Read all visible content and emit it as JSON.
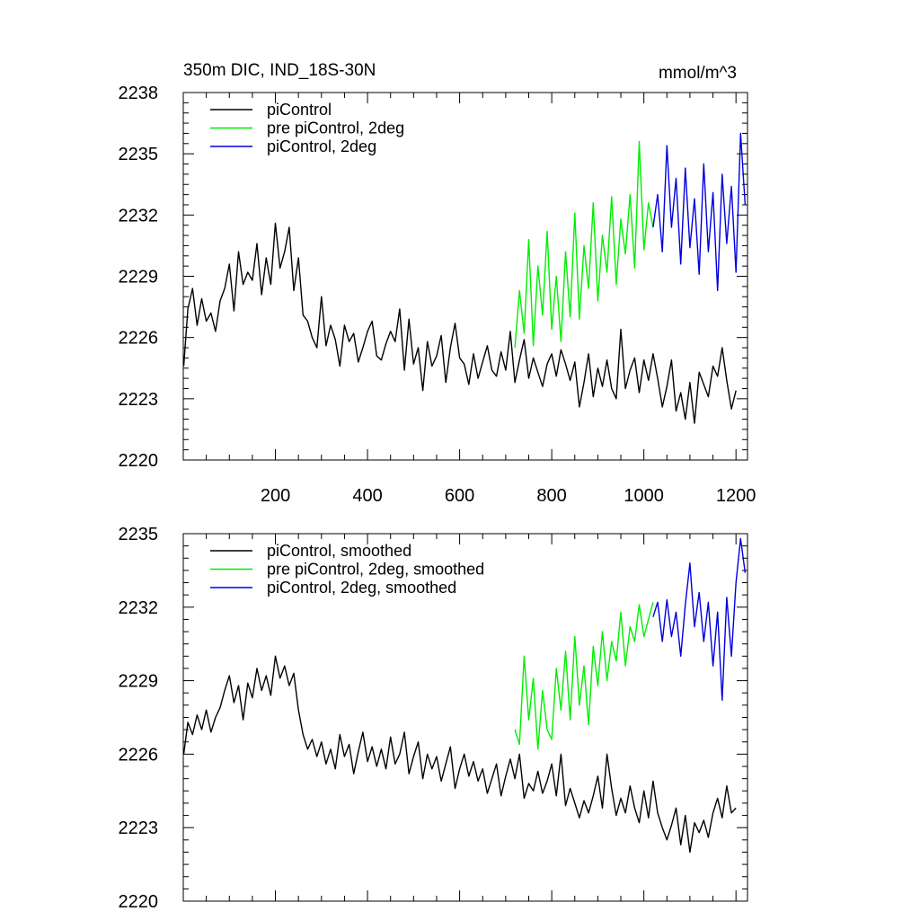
{
  "figure": {
    "title_left": "350m DIC, IND_18S-30N",
    "title_right": "mmol/m^3"
  },
  "colors": {
    "piControl": "#000000",
    "pre_piControl": "#00ee00",
    "piControl_2deg": "#0000dd"
  },
  "chart_data": [
    {
      "type": "line",
      "panel": "top",
      "title": "350m DIC, IND_18S-30N",
      "units": "mmol/m^3",
      "xlim": [
        0,
        1225
      ],
      "ylim": [
        2220,
        2238
      ],
      "x_ticks": [
        200,
        400,
        600,
        800,
        1000,
        1200
      ],
      "x_tick_labels": [
        "200",
        "400",
        "600",
        "800",
        "1000",
        "1200"
      ],
      "y_ticks": [
        2220,
        2223,
        2226,
        2229,
        2232,
        2235,
        2238
      ],
      "y_tick_labels": [
        "2220",
        "2223",
        "2226",
        "2229",
        "2232",
        "2235",
        "2238"
      ],
      "legend": [
        "piControl",
        "pre piControl, 2deg",
        "piControl, 2deg"
      ],
      "legend_position": "top-left",
      "series": [
        {
          "name": "piControl",
          "color_key": "piControl",
          "x": [
            1,
            10,
            20,
            30,
            40,
            50,
            60,
            70,
            80,
            90,
            100,
            110,
            120,
            130,
            140,
            150,
            160,
            170,
            180,
            190,
            200,
            210,
            220,
            230,
            240,
            250,
            260,
            270,
            280,
            290,
            300,
            310,
            320,
            330,
            340,
            350,
            360,
            370,
            380,
            390,
            400,
            410,
            420,
            430,
            440,
            450,
            460,
            470,
            480,
            490,
            500,
            510,
            520,
            530,
            540,
            550,
            560,
            570,
            580,
            590,
            600,
            610,
            620,
            630,
            640,
            650,
            660,
            670,
            680,
            690,
            700,
            710,
            720,
            730,
            740,
            750,
            760,
            770,
            780,
            790,
            800,
            810,
            820,
            830,
            840,
            850,
            860,
            870,
            880,
            890,
            900,
            910,
            920,
            930,
            940,
            950,
            960,
            970,
            980,
            990,
            1000,
            1010,
            1020,
            1030,
            1040,
            1050,
            1060,
            1070,
            1080,
            1090,
            1100,
            1110,
            1120,
            1130,
            1140,
            1150,
            1160,
            1170,
            1180,
            1190,
            1200
          ],
          "values": [
            2224.6,
            2227.4,
            2228.4,
            2226.6,
            2227.9,
            2226.8,
            2227.2,
            2226.3,
            2227.8,
            2228.4,
            2229.6,
            2227.3,
            2230.2,
            2228.6,
            2229.2,
            2228.8,
            2230.6,
            2228.1,
            2229.9,
            2228.6,
            2231.6,
            2229.4,
            2230.2,
            2231.4,
            2228.3,
            2229.9,
            2227.1,
            2226.8,
            2226.0,
            2225.5,
            2228.0,
            2225.6,
            2226.6,
            2225.9,
            2224.6,
            2226.6,
            2225.8,
            2226.2,
            2224.8,
            2225.5,
            2226.3,
            2226.8,
            2225.1,
            2224.9,
            2225.7,
            2226.3,
            2225.8,
            2227.4,
            2224.4,
            2226.9,
            2224.7,
            2225.5,
            2223.4,
            2225.8,
            2224.6,
            2225.1,
            2226.1,
            2223.8,
            2225.5,
            2226.7,
            2225.0,
            2224.7,
            2223.7,
            2225.2,
            2224.0,
            2224.8,
            2225.6,
            2224.4,
            2224.1,
            2225.3,
            2224.4,
            2226.3,
            2223.8,
            2224.9,
            2225.9,
            2224.0,
            2225.0,
            2224.3,
            2223.6,
            2224.7,
            2225.2,
            2224.1,
            2225.4,
            2224.7,
            2223.9,
            2224.8,
            2222.6,
            2223.8,
            2225.2,
            2223.1,
            2224.5,
            2223.6,
            2224.9,
            2223.5,
            2223.0,
            2226.4,
            2223.5,
            2224.4,
            2225.0,
            2223.3,
            2224.9,
            2223.9,
            2225.2,
            2224.0,
            2222.6,
            2223.6,
            2224.9,
            2222.4,
            2223.3,
            2222.0,
            2223.8,
            2221.8,
            2224.3,
            2223.7,
            2223.1,
            2224.6,
            2224.1,
            2225.5,
            2223.9,
            2222.5,
            2223.4
          ]
        },
        {
          "name": "pre piControl, 2deg",
          "color_key": "pre_piControl",
          "x": [
            720,
            730,
            740,
            750,
            760,
            770,
            780,
            790,
            800,
            810,
            820,
            830,
            840,
            850,
            860,
            870,
            880,
            890,
            900,
            910,
            920,
            930,
            940,
            950,
            960,
            970,
            980,
            990,
            1000,
            1010,
            1020
          ],
          "values": [
            2225.5,
            2228.3,
            2226.2,
            2230.8,
            2225.6,
            2229.5,
            2227.1,
            2231.2,
            2226.4,
            2229.0,
            2225.8,
            2230.2,
            2227.0,
            2232.1,
            2226.9,
            2230.5,
            2228.4,
            2232.6,
            2227.8,
            2231.0,
            2229.2,
            2232.9,
            2228.6,
            2231.8,
            2230.1,
            2233.0,
            2229.4,
            2235.6,
            2230.3,
            2232.6,
            2231.4
          ]
        },
        {
          "name": "piControl, 2deg",
          "color_key": "piControl_2deg",
          "x": [
            1020,
            1030,
            1040,
            1050,
            1060,
            1070,
            1080,
            1090,
            1100,
            1110,
            1120,
            1130,
            1140,
            1150,
            1160,
            1170,
            1180,
            1190,
            1200,
            1210,
            1220
          ],
          "values": [
            2231.4,
            2233.0,
            2230.2,
            2235.4,
            2231.4,
            2233.8,
            2229.6,
            2234.3,
            2230.4,
            2232.8,
            2229.1,
            2234.5,
            2230.2,
            2233.1,
            2228.3,
            2234.0,
            2230.6,
            2233.4,
            2229.2,
            2236.0,
            2232.5
          ]
        }
      ]
    },
    {
      "type": "line",
      "panel": "bottom",
      "xlim": [
        0,
        1225
      ],
      "ylim": [
        2220,
        2235
      ],
      "x_ticks": [
        200,
        400,
        600,
        800,
        1000,
        1200
      ],
      "y_ticks": [
        2220,
        2223,
        2226,
        2229,
        2232,
        2235
      ],
      "y_tick_labels": [
        "2220",
        "2223",
        "2226",
        "2229",
        "2232",
        "2235"
      ],
      "legend": [
        "piControl, smoothed",
        "pre piControl, 2deg, smoothed",
        "piControl, 2deg, smoothed"
      ],
      "legend_position": "top-left",
      "series": [
        {
          "name": "piControl, smoothed",
          "color_key": "piControl",
          "x": [
            1,
            10,
            20,
            30,
            40,
            50,
            60,
            70,
            80,
            90,
            100,
            110,
            120,
            130,
            140,
            150,
            160,
            170,
            180,
            190,
            200,
            210,
            220,
            230,
            240,
            250,
            260,
            270,
            280,
            290,
            300,
            310,
            320,
            330,
            340,
            350,
            360,
            370,
            380,
            390,
            400,
            410,
            420,
            430,
            440,
            450,
            460,
            470,
            480,
            490,
            500,
            510,
            520,
            530,
            540,
            550,
            560,
            570,
            580,
            590,
            600,
            610,
            620,
            630,
            640,
            650,
            660,
            670,
            680,
            690,
            700,
            710,
            720,
            730,
            740,
            750,
            760,
            770,
            780,
            790,
            800,
            810,
            820,
            830,
            840,
            850,
            860,
            870,
            880,
            890,
            900,
            910,
            920,
            930,
            940,
            950,
            960,
            970,
            980,
            990,
            1000,
            1010,
            1020,
            1030,
            1040,
            1050,
            1060,
            1070,
            1080,
            1090,
            1100,
            1110,
            1120,
            1130,
            1140,
            1150,
            1160,
            1170,
            1180,
            1190,
            1200
          ],
          "values": [
            2226.0,
            2227.3,
            2226.8,
            2227.6,
            2227.0,
            2227.8,
            2226.9,
            2227.5,
            2227.9,
            2228.6,
            2229.2,
            2228.1,
            2228.8,
            2227.4,
            2228.9,
            2228.3,
            2229.5,
            2228.6,
            2229.2,
            2228.4,
            2230.0,
            2229.1,
            2229.6,
            2228.8,
            2229.3,
            2227.8,
            2226.8,
            2226.2,
            2226.6,
            2225.9,
            2226.5,
            2225.6,
            2226.2,
            2225.4,
            2226.8,
            2225.9,
            2226.4,
            2225.2,
            2226.1,
            2226.9,
            2225.7,
            2226.3,
            2225.5,
            2226.2,
            2225.4,
            2226.7,
            2225.6,
            2226.0,
            2226.9,
            2225.2,
            2225.9,
            2226.5,
            2225.0,
            2226.0,
            2225.4,
            2225.9,
            2224.9,
            2225.6,
            2226.3,
            2224.6,
            2225.4,
            2226.0,
            2225.1,
            2225.7,
            2224.9,
            2225.4,
            2224.4,
            2225.0,
            2225.6,
            2224.3,
            2225.1,
            2225.8,
            2225.0,
            2226.0,
            2224.2,
            2224.8,
            2224.5,
            2225.3,
            2224.4,
            2224.9,
            2225.6,
            2224.3,
            2226.0,
            2223.9,
            2224.6,
            2224.0,
            2223.4,
            2224.1,
            2223.6,
            2224.3,
            2225.1,
            2223.8,
            2226.0,
            2224.6,
            2223.5,
            2224.2,
            2223.6,
            2224.7,
            2223.8,
            2223.2,
            2224.5,
            2223.4,
            2224.9,
            2223.6,
            2223.0,
            2222.5,
            2223.1,
            2223.8,
            2222.3,
            2223.5,
            2222.0,
            2223.2,
            2222.8,
            2223.3,
            2222.6,
            2223.6,
            2224.2,
            2223.4,
            2224.7,
            2223.6,
            2223.8
          ]
        },
        {
          "name": "pre piControl, 2deg, smoothed",
          "color_key": "pre_piControl",
          "x": [
            720,
            730,
            740,
            750,
            760,
            770,
            780,
            790,
            800,
            810,
            820,
            830,
            840,
            850,
            860,
            870,
            880,
            890,
            900,
            910,
            920,
            930,
            940,
            950,
            960,
            970,
            980,
            990,
            1000,
            1010,
            1020
          ],
          "values": [
            2227.0,
            2226.4,
            2230.0,
            2227.4,
            2229.1,
            2226.2,
            2228.6,
            2227.0,
            2226.6,
            2229.5,
            2227.8,
            2230.2,
            2227.4,
            2230.8,
            2228.0,
            2229.6,
            2227.2,
            2230.4,
            2228.8,
            2231.0,
            2229.0,
            2230.6,
            2229.8,
            2231.8,
            2229.6,
            2231.2,
            2230.6,
            2232.1,
            2230.8,
            2231.5,
            2232.2
          ]
        },
        {
          "name": "piControl, 2deg, smoothed",
          "color_key": "piControl_2deg",
          "x": [
            1020,
            1030,
            1040,
            1050,
            1060,
            1070,
            1080,
            1090,
            1100,
            1110,
            1120,
            1130,
            1140,
            1150,
            1160,
            1170,
            1180,
            1190,
            1200,
            1210,
            1220
          ],
          "values": [
            2231.6,
            2232.2,
            2230.6,
            2232.3,
            2230.8,
            2231.8,
            2230.0,
            2232.1,
            2233.8,
            2231.2,
            2232.6,
            2230.6,
            2232.2,
            2229.6,
            2231.8,
            2228.2,
            2232.4,
            2230.0,
            2233.0,
            2234.8,
            2233.4
          ]
        }
      ]
    }
  ]
}
